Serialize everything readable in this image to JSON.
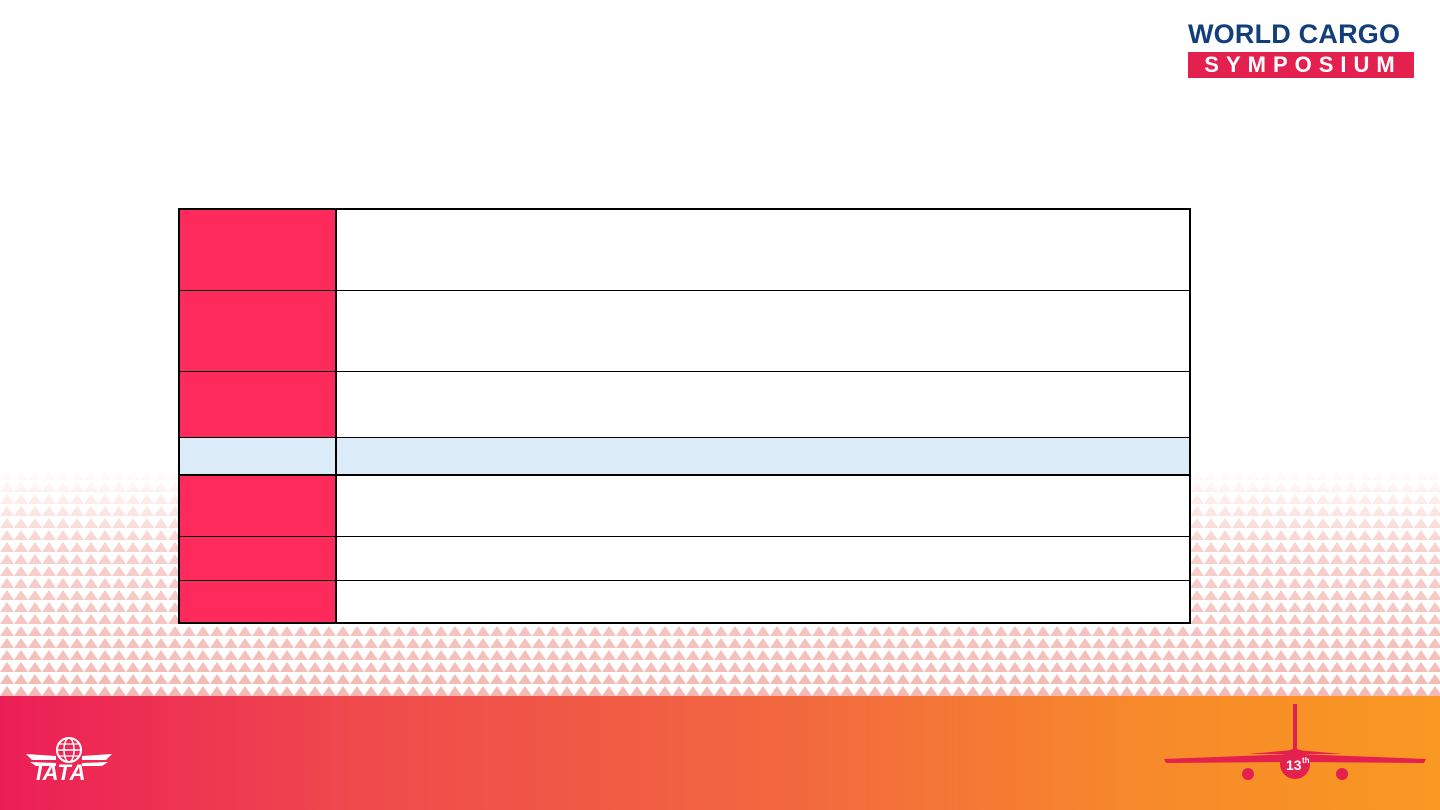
{
  "logo": {
    "line1": "WORLD CARGO",
    "line2": "SYMPOSIUM"
  },
  "footer": {
    "iata_text": "IATA",
    "edition_badge": "13",
    "edition_suffix": "th"
  },
  "table": {
    "rows": [
      {
        "label": "",
        "value": ""
      },
      {
        "label": "",
        "value": ""
      },
      {
        "label": "",
        "value": ""
      },
      {
        "label": "",
        "value": ""
      },
      {
        "label": "",
        "value": ""
      },
      {
        "label": "",
        "value": ""
      },
      {
        "label": "",
        "value": ""
      }
    ]
  },
  "colors": {
    "brand_navy": "#123f7a",
    "brand_red": "#e3204e",
    "label_cell": "#fe2a5c",
    "highlight_row": "#dcebf8",
    "footer_start": "#ec1e57",
    "footer_end": "#f99822"
  }
}
